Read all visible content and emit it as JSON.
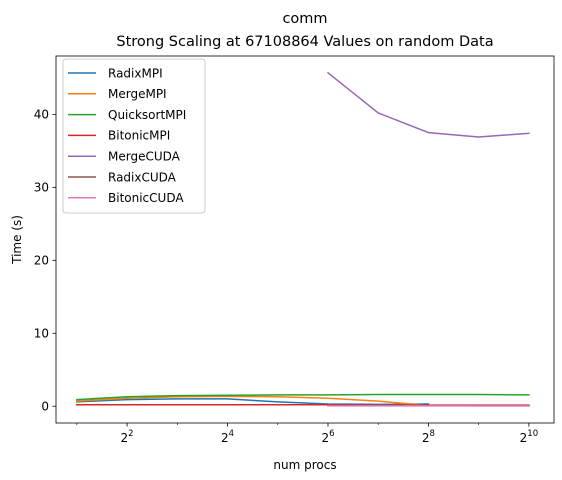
{
  "chart_data": {
    "type": "line",
    "title": "comm",
    "subtitle": "Strong Scaling at 67108864 Values on random Data",
    "xlabel": "num procs",
    "ylabel": "Time (s)",
    "x_scale": "log2",
    "xlim": [
      1.5,
      1448
    ],
    "ylim": [
      -2.3,
      48
    ],
    "x_ticks": [
      4,
      16,
      64,
      256,
      1024
    ],
    "x_tick_labels": [
      {
        "base": "2",
        "exp": "2"
      },
      {
        "base": "2",
        "exp": "4"
      },
      {
        "base": "2",
        "exp": "6"
      },
      {
        "base": "2",
        "exp": "8"
      },
      {
        "base": "2",
        "exp": "10"
      }
    ],
    "y_ticks": [
      0,
      10,
      20,
      30,
      40
    ],
    "y_tick_labels": [
      "0",
      "10",
      "20",
      "30",
      "40"
    ],
    "grid": false,
    "legend_position": "top-left",
    "series": [
      {
        "name": "RadixMPI",
        "color": "#1f77b4",
        "x": [
          2,
          4,
          8,
          16,
          32,
          64,
          128,
          256
        ],
        "y": [
          0.6,
          0.9,
          1.0,
          1.0,
          0.6,
          0.3,
          0.25,
          0.3
        ]
      },
      {
        "name": "MergeMPI",
        "color": "#ff7f0e",
        "x": [
          2,
          4,
          8,
          16,
          32,
          64,
          128,
          256,
          512,
          1024
        ],
        "y": [
          0.7,
          1.1,
          1.3,
          1.35,
          1.3,
          1.1,
          0.7,
          0.1,
          0.05,
          0.05
        ]
      },
      {
        "name": "QuicksortMPI",
        "color": "#2ca02c",
        "x": [
          2,
          4,
          8,
          16,
          32,
          64,
          128,
          256,
          512,
          1024
        ],
        "y": [
          0.9,
          1.3,
          1.45,
          1.5,
          1.55,
          1.55,
          1.6,
          1.6,
          1.6,
          1.55
        ]
      },
      {
        "name": "BitonicMPI",
        "color": "#d62728",
        "x": [
          2,
          4,
          8,
          16,
          32,
          64,
          128,
          256,
          512,
          1024
        ],
        "y": [
          0.2,
          0.2,
          0.2,
          0.2,
          0.2,
          0.2,
          0.15,
          0.15,
          0.15,
          0.15
        ]
      },
      {
        "name": "MergeCUDA",
        "color": "#9467bd",
        "x": [
          64,
          128,
          256,
          512,
          1024
        ],
        "y": [
          45.7,
          40.2,
          37.5,
          36.9,
          37.4
        ]
      },
      {
        "name": "RadixCUDA",
        "color": "#8c564b",
        "x": [
          64,
          128,
          256,
          512,
          1024
        ],
        "y": [
          0.1,
          0.1,
          0.1,
          0.1,
          0.1
        ]
      },
      {
        "name": "BitonicCUDA",
        "color": "#e377c2",
        "x": [
          64,
          128,
          256,
          512,
          1024
        ],
        "y": [
          0.05,
          0.05,
          0.05,
          0.05,
          0.05
        ]
      }
    ]
  }
}
